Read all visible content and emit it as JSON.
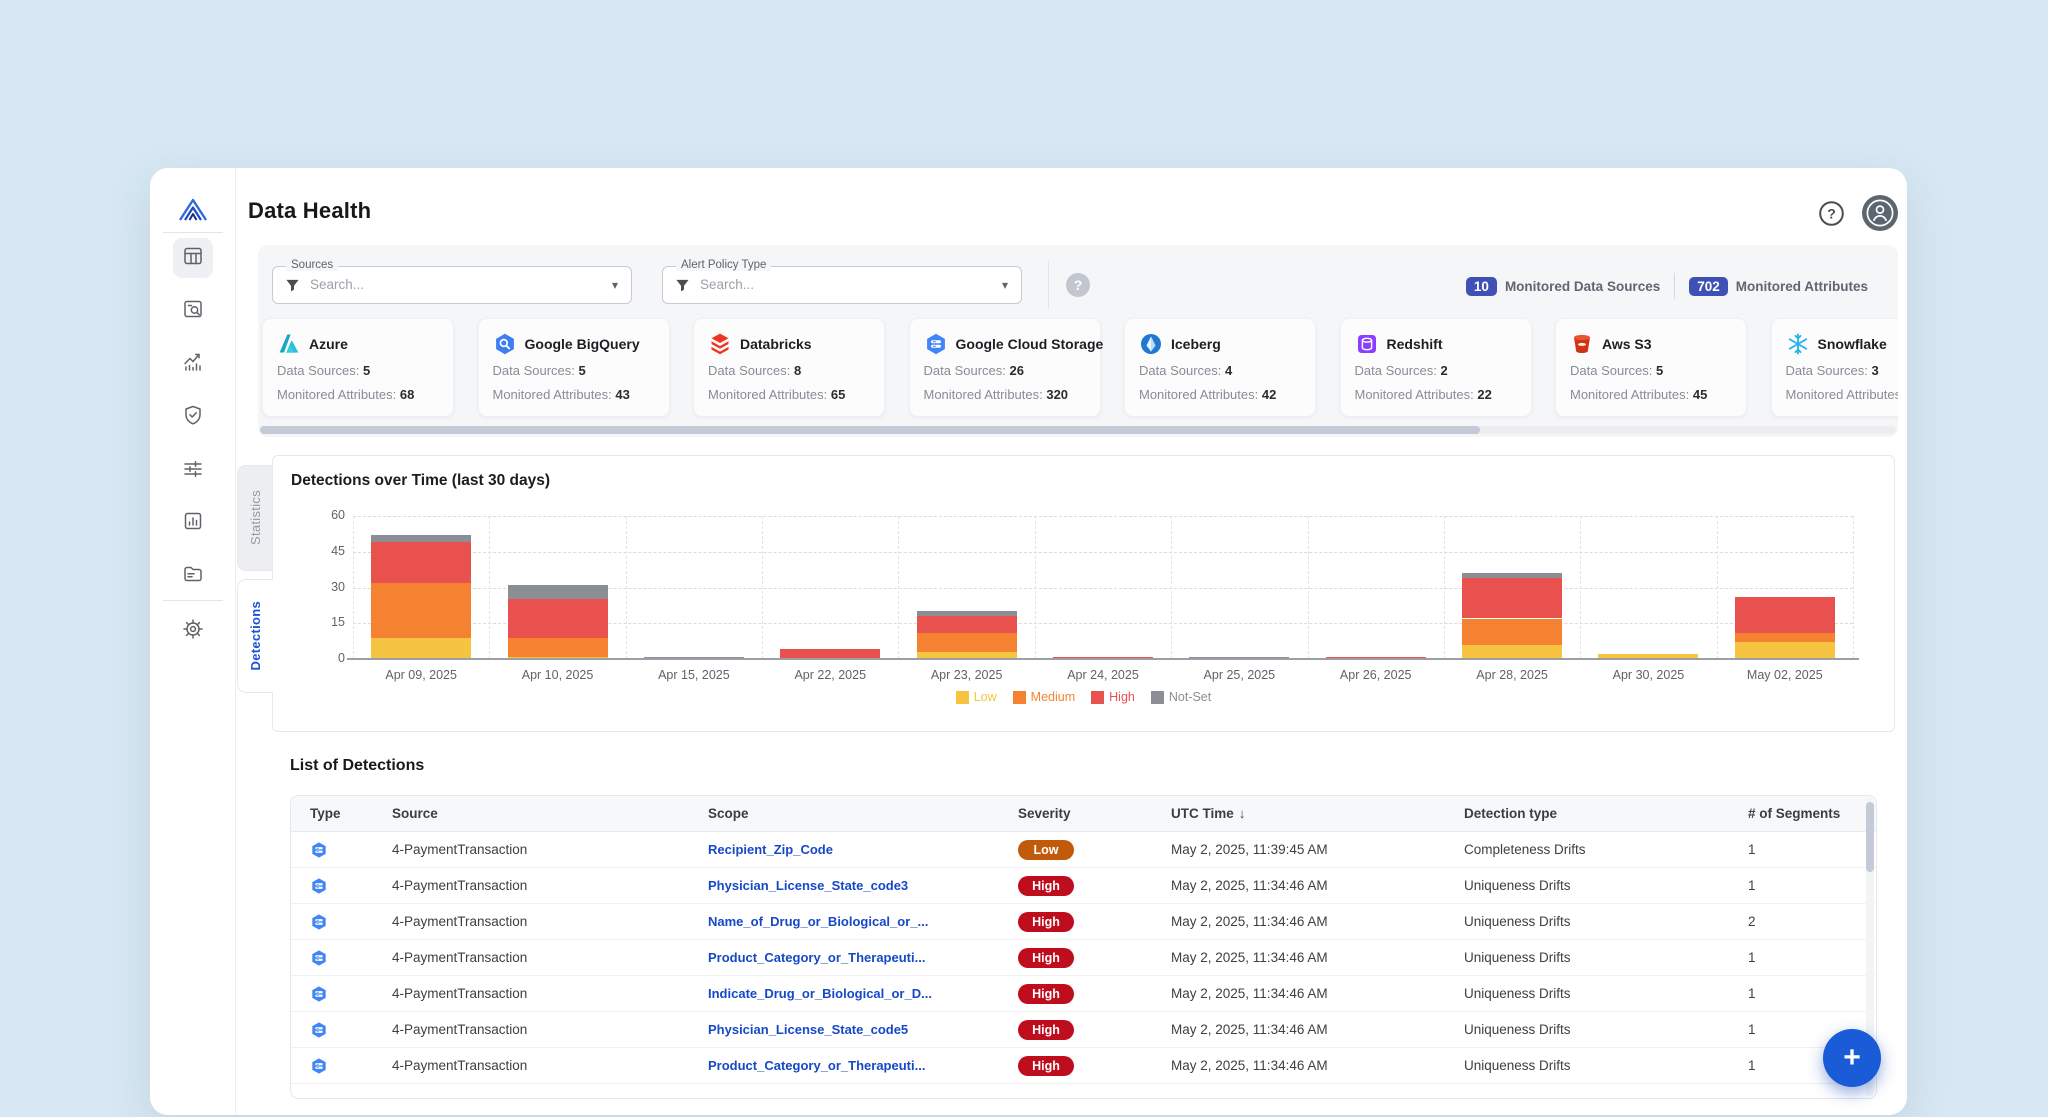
{
  "header": {
    "title": "Data Health"
  },
  "sidebar": {
    "items": [
      {
        "icon": "dashboard-icon",
        "active": true
      },
      {
        "icon": "discover-search-icon",
        "active": false
      },
      {
        "icon": "performance-trend-icon",
        "active": false
      },
      {
        "icon": "reliability-shield-icon",
        "active": false
      },
      {
        "icon": "controls-sliders-icon",
        "active": false
      },
      {
        "icon": "reports-bar-chart-icon",
        "active": false
      },
      {
        "icon": "catalog-folder-icon",
        "active": false
      }
    ],
    "footer_item": {
      "icon": "settings-gear-icon",
      "active": false
    }
  },
  "filters": {
    "sources": {
      "label": "Sources",
      "placeholder": "Search..."
    },
    "alert_policy_type": {
      "label": "Alert Policy Type",
      "placeholder": "Search..."
    },
    "summary_badges": [
      {
        "count": "10",
        "label": "Monitored Data Sources"
      },
      {
        "count": "702",
        "label": "Monitored Attributes"
      }
    ]
  },
  "source_cards": [
    {
      "name": "Azure",
      "icon": "azure-icon",
      "data_sources": "5",
      "monitored_attributes": "68"
    },
    {
      "name": "Google BigQuery",
      "icon": "bigquery-icon",
      "data_sources": "5",
      "monitored_attributes": "43"
    },
    {
      "name": "Databricks",
      "icon": "databricks-icon",
      "data_sources": "8",
      "monitored_attributes": "65"
    },
    {
      "name": "Google Cloud Storage",
      "icon": "gcs-icon",
      "data_sources": "26",
      "monitored_attributes": "320"
    },
    {
      "name": "Iceberg",
      "icon": "iceberg-icon",
      "data_sources": "4",
      "monitored_attributes": "42"
    },
    {
      "name": "Redshift",
      "icon": "redshift-icon",
      "data_sources": "2",
      "monitored_attributes": "22"
    },
    {
      "name": "Aws S3",
      "icon": "s3-icon",
      "data_sources": "5",
      "monitored_attributes": "45"
    },
    {
      "name": "Snowflake",
      "icon": "snowflake-icon",
      "data_sources": "3",
      "monitored_attributes": ""
    }
  ],
  "tabs": {
    "statistics": "Statistics",
    "detections": "Detections"
  },
  "chart_data": {
    "type": "bar",
    "stacked": true,
    "title": "Detections over Time (last 30 days)",
    "categories": [
      "Apr 09, 2025",
      "Apr 10, 2025",
      "Apr 15, 2025",
      "Apr 22, 2025",
      "Apr 23, 2025",
      "Apr 24, 2025",
      "Apr 25, 2025",
      "Apr 26, 2025",
      "Apr 28, 2025",
      "Apr 30, 2025",
      "May 02, 2025"
    ],
    "series": [
      {
        "name": "Low",
        "color": "#F6C440",
        "values": [
          9,
          1,
          0,
          0,
          3,
          0,
          0,
          0,
          6,
          2,
          7
        ]
      },
      {
        "name": "Medium",
        "color": "#F58231",
        "values": [
          23,
          8,
          0,
          0,
          8,
          0,
          0,
          0,
          11,
          0,
          4
        ]
      },
      {
        "name": "High",
        "color": "#E8514D",
        "values": [
          17,
          16,
          0,
          4,
          7,
          1,
          0,
          1,
          17,
          0,
          15
        ]
      },
      {
        "name": "Not-Set",
        "color": "#8B8E94",
        "values": [
          3,
          6,
          1,
          0,
          2,
          0,
          1,
          0,
          2,
          0,
          0
        ]
      }
    ],
    "xlabel": "",
    "ylabel": "",
    "ylim": [
      0,
      60
    ],
    "yticks": [
      0,
      15,
      30,
      45,
      60
    ],
    "grid": true,
    "legend_position": "bottom"
  },
  "detections_table": {
    "title": "List of Detections",
    "columns": [
      "Type",
      "Source",
      "Scope",
      "Severity",
      "UTC Time",
      "Detection type",
      "# of Segments"
    ],
    "sort_column": "UTC Time",
    "rows": [
      {
        "type_icon": "gcs-icon",
        "source": "4-PaymentTransaction",
        "scope": "Recipient_Zip_Code",
        "severity": "Low",
        "utc_time": "May 2, 2025, 11:39:45 AM",
        "detection_type": "Completeness Drifts",
        "segments": "1"
      },
      {
        "type_icon": "gcs-icon",
        "source": "4-PaymentTransaction",
        "scope": "Physician_License_State_code3",
        "severity": "High",
        "utc_time": "May 2, 2025, 11:34:46 AM",
        "detection_type": "Uniqueness Drifts",
        "segments": "1"
      },
      {
        "type_icon": "gcs-icon",
        "source": "4-PaymentTransaction",
        "scope": "Name_of_Drug_or_Biological_or_...",
        "severity": "High",
        "utc_time": "May 2, 2025, 11:34:46 AM",
        "detection_type": "Uniqueness Drifts",
        "segments": "2"
      },
      {
        "type_icon": "gcs-icon",
        "source": "4-PaymentTransaction",
        "scope": "Product_Category_or_Therapeuti...",
        "severity": "High",
        "utc_time": "May 2, 2025, 11:34:46 AM",
        "detection_type": "Uniqueness Drifts",
        "segments": "1"
      },
      {
        "type_icon": "gcs-icon",
        "source": "4-PaymentTransaction",
        "scope": "Indicate_Drug_or_Biological_or_D...",
        "severity": "High",
        "utc_time": "May 2, 2025, 11:34:46 AM",
        "detection_type": "Uniqueness Drifts",
        "segments": "1"
      },
      {
        "type_icon": "gcs-icon",
        "source": "4-PaymentTransaction",
        "scope": "Physician_License_State_code5",
        "severity": "High",
        "utc_time": "May 2, 2025, 11:34:46 AM",
        "detection_type": "Uniqueness Drifts",
        "segments": "1"
      },
      {
        "type_icon": "gcs-icon",
        "source": "4-PaymentTransaction",
        "scope": "Product_Category_or_Therapeuti...",
        "severity": "High",
        "utc_time": "May 2, 2025, 11:34:46 AM",
        "detection_type": "Uniqueness Drifts",
        "segments": "1"
      }
    ]
  },
  "fab": {
    "label": "+"
  },
  "colors": {
    "page_background": "#D7E8F4",
    "accent_blue": "#1A5BD7",
    "badge_indigo": "#3F51B5",
    "link_blue": "#1648C8",
    "severity": {
      "Low": "#C25A0C",
      "High": "#C00D1D"
    }
  }
}
